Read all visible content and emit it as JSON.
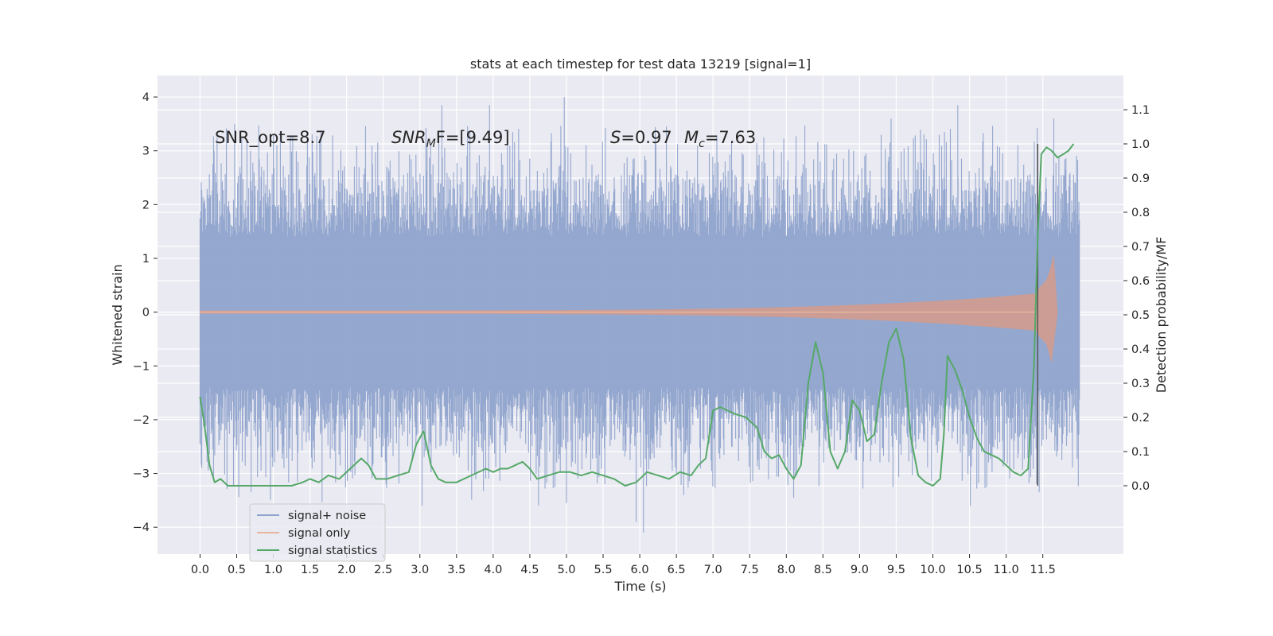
{
  "chart_data": {
    "type": "line",
    "title": "stats at each timestep for test data 13219 [signal=1]",
    "xlabel": "Time (s)",
    "ylabel_left": "Whitened strain",
    "ylabel_right": "Detection probability/MF",
    "xlim": [
      -0.58,
      12.6
    ],
    "ylim_left": [
      -4.5,
      4.4
    ],
    "ylim_right": [
      -0.2,
      1.2
    ],
    "x_ticks": [
      "0.0",
      "0.5",
      "1.0",
      "1.5",
      "2.0",
      "2.5",
      "3.0",
      "3.5",
      "4.0",
      "4.5",
      "5.0",
      "5.5",
      "6.0",
      "6.5",
      "7.0",
      "7.5",
      "8.0",
      "8.5",
      "9.0",
      "9.5",
      "10.0",
      "10.5",
      "11.0",
      "11.5"
    ],
    "y_ticks_left": [
      "−4",
      "−3",
      "−2",
      "−1",
      "0",
      "1",
      "2",
      "3",
      "4"
    ],
    "y_ticks_right": [
      "0.0",
      "0.1",
      "0.2",
      "0.3",
      "0.4",
      "0.5",
      "0.6",
      "0.7",
      "0.8",
      "0.9",
      "1.0",
      "1.1"
    ],
    "grid": true,
    "legend_position": "lower-left",
    "annotations": {
      "snr_opt": "SNR_opt=8.7",
      "snr_mf_italic": "SNR",
      "snr_mf_sub": "M",
      "snr_mf_rest": "F=[9.49]",
      "s_italic": "S",
      "s_rest": "=0.97",
      "mc_italic": "M",
      "mc_sub": "c",
      "mc_rest": "=7.63"
    },
    "vline_x": 11.43,
    "series": [
      {
        "name": "signal+ noise",
        "axis": "left",
        "color": "#8fa3cc",
        "x_range": [
          0.0,
          12.0
        ],
        "envelope": {
          "typical_peak": 2.0,
          "extreme_peaks": [
            {
              "x": 3.03,
              "y": -3.6
            },
            {
              "x": 3.3,
              "y": 3.85
            },
            {
              "x": 3.95,
              "y": 3.85
            },
            {
              "x": 4.97,
              "y": 4.0
            },
            {
              "x": 5.0,
              "y": -3.55
            },
            {
              "x": 5.95,
              "y": -3.9
            },
            {
              "x": 6.05,
              "y": -4.1
            },
            {
              "x": 6.6,
              "y": -3.4
            },
            {
              "x": 8.1,
              "y": -3.45
            },
            {
              "x": 10.34,
              "y": 3.85
            },
            {
              "x": 11.45,
              "y": -3.35
            },
            {
              "x": 11.65,
              "y": 3.6
            }
          ]
        }
      },
      {
        "name": "signal only",
        "axis": "left",
        "color": "#dd8452",
        "chirp": {
          "start": 0.0,
          "end": 11.7,
          "peak_time": 11.65,
          "peak_amplitude": 1.08,
          "min_amplitude": -0.95
        }
      },
      {
        "name": "signal statistics",
        "axis": "right",
        "color": "#55a868",
        "x": [
          0.0,
          0.06,
          0.13,
          0.2,
          0.28,
          0.38,
          0.5,
          0.7,
          1.0,
          1.25,
          1.4,
          1.5,
          1.62,
          1.75,
          1.9,
          2.05,
          2.2,
          2.3,
          2.4,
          2.55,
          2.7,
          2.85,
          2.95,
          3.05,
          3.15,
          3.25,
          3.35,
          3.5,
          3.7,
          3.9,
          4.0,
          4.1,
          4.2,
          4.3,
          4.4,
          4.5,
          4.6,
          4.75,
          4.9,
          5.05,
          5.2,
          5.35,
          5.5,
          5.65,
          5.8,
          5.95,
          6.1,
          6.25,
          6.4,
          6.55,
          6.7,
          6.8,
          6.9,
          7.0,
          7.1,
          7.2,
          7.3,
          7.45,
          7.6,
          7.7,
          7.8,
          7.9,
          8.0,
          8.1,
          8.2,
          8.3,
          8.4,
          8.5,
          8.6,
          8.7,
          8.8,
          8.9,
          9.0,
          9.1,
          9.2,
          9.3,
          9.4,
          9.5,
          9.6,
          9.7,
          9.8,
          9.9,
          10.0,
          10.1,
          10.15,
          10.2,
          10.3,
          10.4,
          10.5,
          10.6,
          10.7,
          10.8,
          10.9,
          11.0,
          11.1,
          11.2,
          11.3,
          11.38,
          11.43,
          11.48,
          11.55,
          11.62,
          11.7,
          11.78,
          11.85,
          11.92
        ],
        "y": [
          0.26,
          0.18,
          0.06,
          0.01,
          0.02,
          0.0,
          0.0,
          0.0,
          0.0,
          0.0,
          0.01,
          0.02,
          0.01,
          0.03,
          0.02,
          0.05,
          0.08,
          0.06,
          0.02,
          0.02,
          0.03,
          0.04,
          0.12,
          0.16,
          0.06,
          0.02,
          0.01,
          0.01,
          0.03,
          0.05,
          0.04,
          0.05,
          0.05,
          0.06,
          0.07,
          0.05,
          0.02,
          0.03,
          0.04,
          0.04,
          0.03,
          0.04,
          0.03,
          0.02,
          0.0,
          0.01,
          0.04,
          0.03,
          0.02,
          0.04,
          0.03,
          0.06,
          0.08,
          0.22,
          0.23,
          0.22,
          0.21,
          0.2,
          0.17,
          0.1,
          0.08,
          0.09,
          0.05,
          0.02,
          0.06,
          0.3,
          0.42,
          0.33,
          0.1,
          0.05,
          0.1,
          0.25,
          0.22,
          0.13,
          0.15,
          0.3,
          0.42,
          0.46,
          0.37,
          0.14,
          0.03,
          0.01,
          0.0,
          0.02,
          0.15,
          0.38,
          0.34,
          0.28,
          0.2,
          0.14,
          0.1,
          0.09,
          0.08,
          0.06,
          0.04,
          0.03,
          0.05,
          0.35,
          0.72,
          0.97,
          0.99,
          0.98,
          0.96,
          0.97,
          0.98,
          1.0
        ]
      }
    ]
  }
}
